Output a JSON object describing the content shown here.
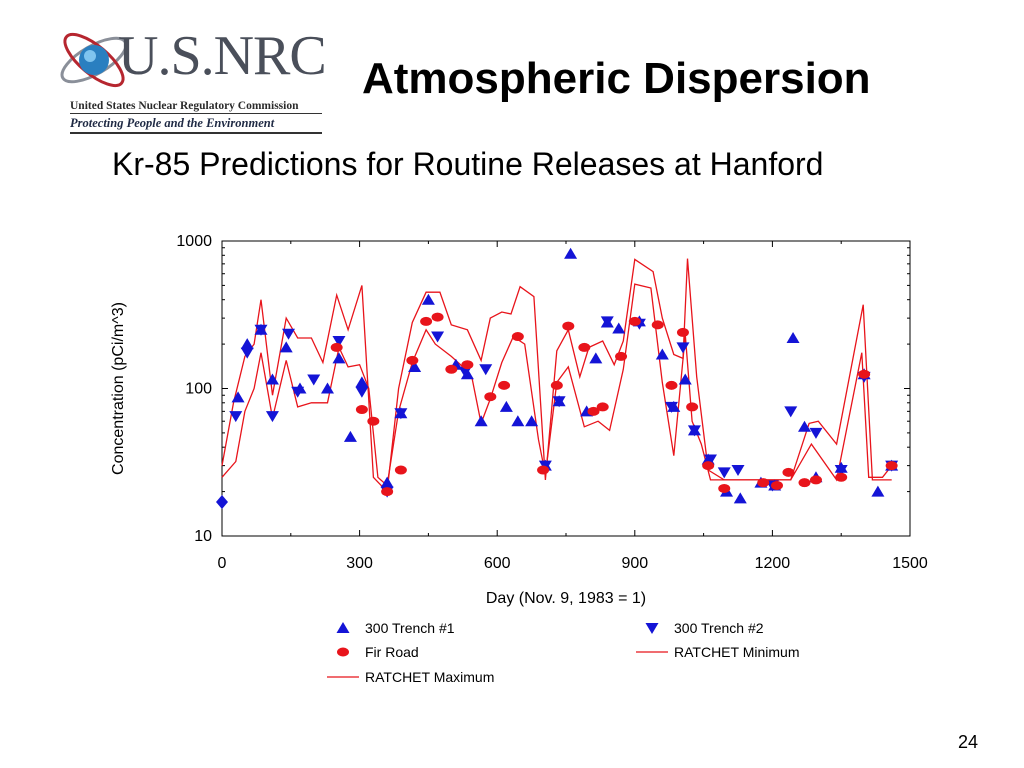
{
  "slide": {
    "logo_text": "U.S.NRC",
    "logo_agency": "United States Nuclear Regulatory Commission",
    "logo_tagline": "Protecting People and the Environment",
    "title": "Atmospheric Dispersion",
    "subtitle": "Kr-85 Predictions for Routine Releases at Hanford",
    "page_number": "24"
  },
  "colors": {
    "red": "#e8141b",
    "blue": "#1414d6",
    "text": "#000000"
  },
  "chart_data": {
    "type": "scatter",
    "title": "",
    "xlabel": "Day (Nov. 9, 1983 = 1)",
    "ylabel": "Concentration (pCi/m^3)",
    "xlim": [
      0,
      1500
    ],
    "ylim": [
      10,
      1000
    ],
    "yscale": "log",
    "xticks": [
      0,
      300,
      600,
      900,
      1200,
      1500
    ],
    "xtick_labels": [
      "0",
      "300",
      "600",
      "900",
      "1200",
      "1500"
    ],
    "yticks": [
      10,
      100,
      1000
    ],
    "ytick_labels": [
      "10",
      "100",
      "1000"
    ],
    "legend_position": "bottom",
    "series": [
      {
        "name": "300 Trench #1",
        "marker": "triangle-up",
        "color": "#1414d6",
        "points": [
          [
            0,
            17
          ],
          [
            35,
            87
          ],
          [
            55,
            200
          ],
          [
            85,
            250
          ],
          [
            110,
            115
          ],
          [
            140,
            190
          ],
          [
            170,
            100
          ],
          [
            230,
            100
          ],
          [
            255,
            160
          ],
          [
            280,
            47
          ],
          [
            305,
            110
          ],
          [
            360,
            23
          ],
          [
            390,
            68
          ],
          [
            420,
            140
          ],
          [
            450,
            400
          ],
          [
            510,
            145
          ],
          [
            535,
            125
          ],
          [
            565,
            60
          ],
          [
            620,
            75
          ],
          [
            645,
            60
          ],
          [
            675,
            60
          ],
          [
            705,
            30
          ],
          [
            735,
            82
          ],
          [
            760,
            820
          ],
          [
            795,
            70
          ],
          [
            815,
            160
          ],
          [
            840,
            280
          ],
          [
            865,
            255
          ],
          [
            910,
            285
          ],
          [
            960,
            170
          ],
          [
            985,
            75
          ],
          [
            1010,
            115
          ],
          [
            1030,
            52
          ],
          [
            1060,
            33
          ],
          [
            1100,
            20
          ],
          [
            1130,
            18
          ],
          [
            1175,
            23
          ],
          [
            1205,
            22
          ],
          [
            1245,
            220
          ],
          [
            1270,
            55
          ],
          [
            1295,
            25
          ],
          [
            1350,
            29
          ],
          [
            1400,
            125
          ],
          [
            1430,
            20
          ],
          [
            1460,
            30
          ]
        ]
      },
      {
        "name": "300 Trench #2",
        "marker": "triangle-down",
        "color": "#1414d6",
        "points": [
          [
            30,
            65
          ],
          [
            55,
            175
          ],
          [
            85,
            250
          ],
          [
            110,
            65
          ],
          [
            145,
            235
          ],
          [
            165,
            95
          ],
          [
            200,
            115
          ],
          [
            255,
            210
          ],
          [
            305,
            95
          ],
          [
            360,
            20
          ],
          [
            390,
            68
          ],
          [
            470,
            225
          ],
          [
            530,
            130
          ],
          [
            575,
            135
          ],
          [
            705,
            30
          ],
          [
            735,
            82
          ],
          [
            840,
            285
          ],
          [
            910,
            275
          ],
          [
            980,
            75
          ],
          [
            1005,
            190
          ],
          [
            1030,
            52
          ],
          [
            1065,
            33
          ],
          [
            1095,
            27
          ],
          [
            1125,
            28
          ],
          [
            1200,
            22
          ],
          [
            1240,
            70
          ],
          [
            1295,
            50
          ],
          [
            1350,
            28
          ],
          [
            1400,
            120
          ],
          [
            1460,
            30
          ]
        ]
      },
      {
        "name": "Fir Road",
        "marker": "circle",
        "color": "#e8141b",
        "points": [
          [
            250,
            190
          ],
          [
            305,
            72
          ],
          [
            330,
            60
          ],
          [
            360,
            20
          ],
          [
            390,
            28
          ],
          [
            415,
            155
          ],
          [
            445,
            285
          ],
          [
            470,
            305
          ],
          [
            500,
            135
          ],
          [
            535,
            145
          ],
          [
            585,
            88
          ],
          [
            615,
            105
          ],
          [
            645,
            225
          ],
          [
            700,
            28
          ],
          [
            730,
            105
          ],
          [
            755,
            265
          ],
          [
            790,
            190
          ],
          [
            810,
            70
          ],
          [
            830,
            75
          ],
          [
            870,
            165
          ],
          [
            900,
            285
          ],
          [
            950,
            270
          ],
          [
            980,
            105
          ],
          [
            1005,
            240
          ],
          [
            1025,
            75
          ],
          [
            1060,
            30
          ],
          [
            1095,
            21
          ],
          [
            1180,
            23
          ],
          [
            1210,
            22
          ],
          [
            1235,
            27
          ],
          [
            1270,
            23
          ],
          [
            1295,
            24
          ],
          [
            1350,
            25
          ],
          [
            1400,
            125
          ],
          [
            1460,
            30
          ]
        ]
      },
      {
        "name": "RATCHET Minimum",
        "type": "line",
        "color": "#e8141b",
        "points": [
          [
            0,
            25
          ],
          [
            30,
            32
          ],
          [
            50,
            70
          ],
          [
            70,
            100
          ],
          [
            85,
            175
          ],
          [
            110,
            63
          ],
          [
            140,
            155
          ],
          [
            165,
            75
          ],
          [
            195,
            80
          ],
          [
            230,
            80
          ],
          [
            255,
            190
          ],
          [
            275,
            140
          ],
          [
            300,
            145
          ],
          [
            320,
            100
          ],
          [
            340,
            25
          ],
          [
            360,
            22
          ],
          [
            385,
            70
          ],
          [
            415,
            150
          ],
          [
            445,
            250
          ],
          [
            465,
            200
          ],
          [
            500,
            165
          ],
          [
            520,
            145
          ],
          [
            545,
            118
          ],
          [
            565,
            58
          ],
          [
            585,
            85
          ],
          [
            610,
            150
          ],
          [
            635,
            225
          ],
          [
            660,
            200
          ],
          [
            690,
            45
          ],
          [
            705,
            26
          ],
          [
            730,
            110
          ],
          [
            755,
            140
          ],
          [
            790,
            55
          ],
          [
            820,
            60
          ],
          [
            845,
            52
          ],
          [
            875,
            135
          ],
          [
            900,
            510
          ],
          [
            935,
            480
          ],
          [
            960,
            110
          ],
          [
            985,
            35
          ],
          [
            1010,
            230
          ],
          [
            1025,
            60
          ],
          [
            1045,
            42
          ],
          [
            1065,
            24
          ],
          [
            1100,
            24
          ],
          [
            1240,
            24
          ],
          [
            1285,
            42
          ],
          [
            1340,
            24
          ],
          [
            1395,
            175
          ],
          [
            1410,
            25
          ],
          [
            1440,
            25
          ],
          [
            1460,
            30
          ]
        ]
      },
      {
        "name": "RATCHET Maximum",
        "type": "line",
        "color": "#e8141b",
        "points": [
          [
            0,
            30
          ],
          [
            25,
            80
          ],
          [
            50,
            165
          ],
          [
            70,
            200
          ],
          [
            85,
            400
          ],
          [
            110,
            90
          ],
          [
            140,
            300
          ],
          [
            165,
            220
          ],
          [
            195,
            220
          ],
          [
            220,
            150
          ],
          [
            250,
            430
          ],
          [
            275,
            250
          ],
          [
            305,
            500
          ],
          [
            330,
            25
          ],
          [
            360,
            20
          ],
          [
            385,
            100
          ],
          [
            415,
            280
          ],
          [
            445,
            450
          ],
          [
            475,
            450
          ],
          [
            500,
            270
          ],
          [
            535,
            250
          ],
          [
            565,
            155
          ],
          [
            585,
            300
          ],
          [
            610,
            330
          ],
          [
            630,
            320
          ],
          [
            650,
            490
          ],
          [
            680,
            420
          ],
          [
            705,
            24
          ],
          [
            730,
            180
          ],
          [
            755,
            250
          ],
          [
            780,
            120
          ],
          [
            800,
            190
          ],
          [
            830,
            210
          ],
          [
            855,
            145
          ],
          [
            875,
            210
          ],
          [
            900,
            750
          ],
          [
            940,
            620
          ],
          [
            960,
            300
          ],
          [
            985,
            170
          ],
          [
            1005,
            160
          ],
          [
            1015,
            760
          ],
          [
            1035,
            120
          ],
          [
            1060,
            28
          ],
          [
            1095,
            24
          ],
          [
            1240,
            24
          ],
          [
            1280,
            58
          ],
          [
            1300,
            60
          ],
          [
            1340,
            42
          ],
          [
            1398,
            370
          ],
          [
            1418,
            24
          ],
          [
            1460,
            24
          ]
        ]
      }
    ],
    "legend": [
      {
        "label": "300 Trench #1",
        "symbol": "triangle-up"
      },
      {
        "label": "300 Trench #2",
        "symbol": "triangle-down"
      },
      {
        "label": "Fir Road",
        "symbol": "circle"
      },
      {
        "label": "RATCHET Minimum",
        "symbol": "line"
      },
      {
        "label": "RATCHET Maximum",
        "symbol": "line"
      }
    ]
  }
}
